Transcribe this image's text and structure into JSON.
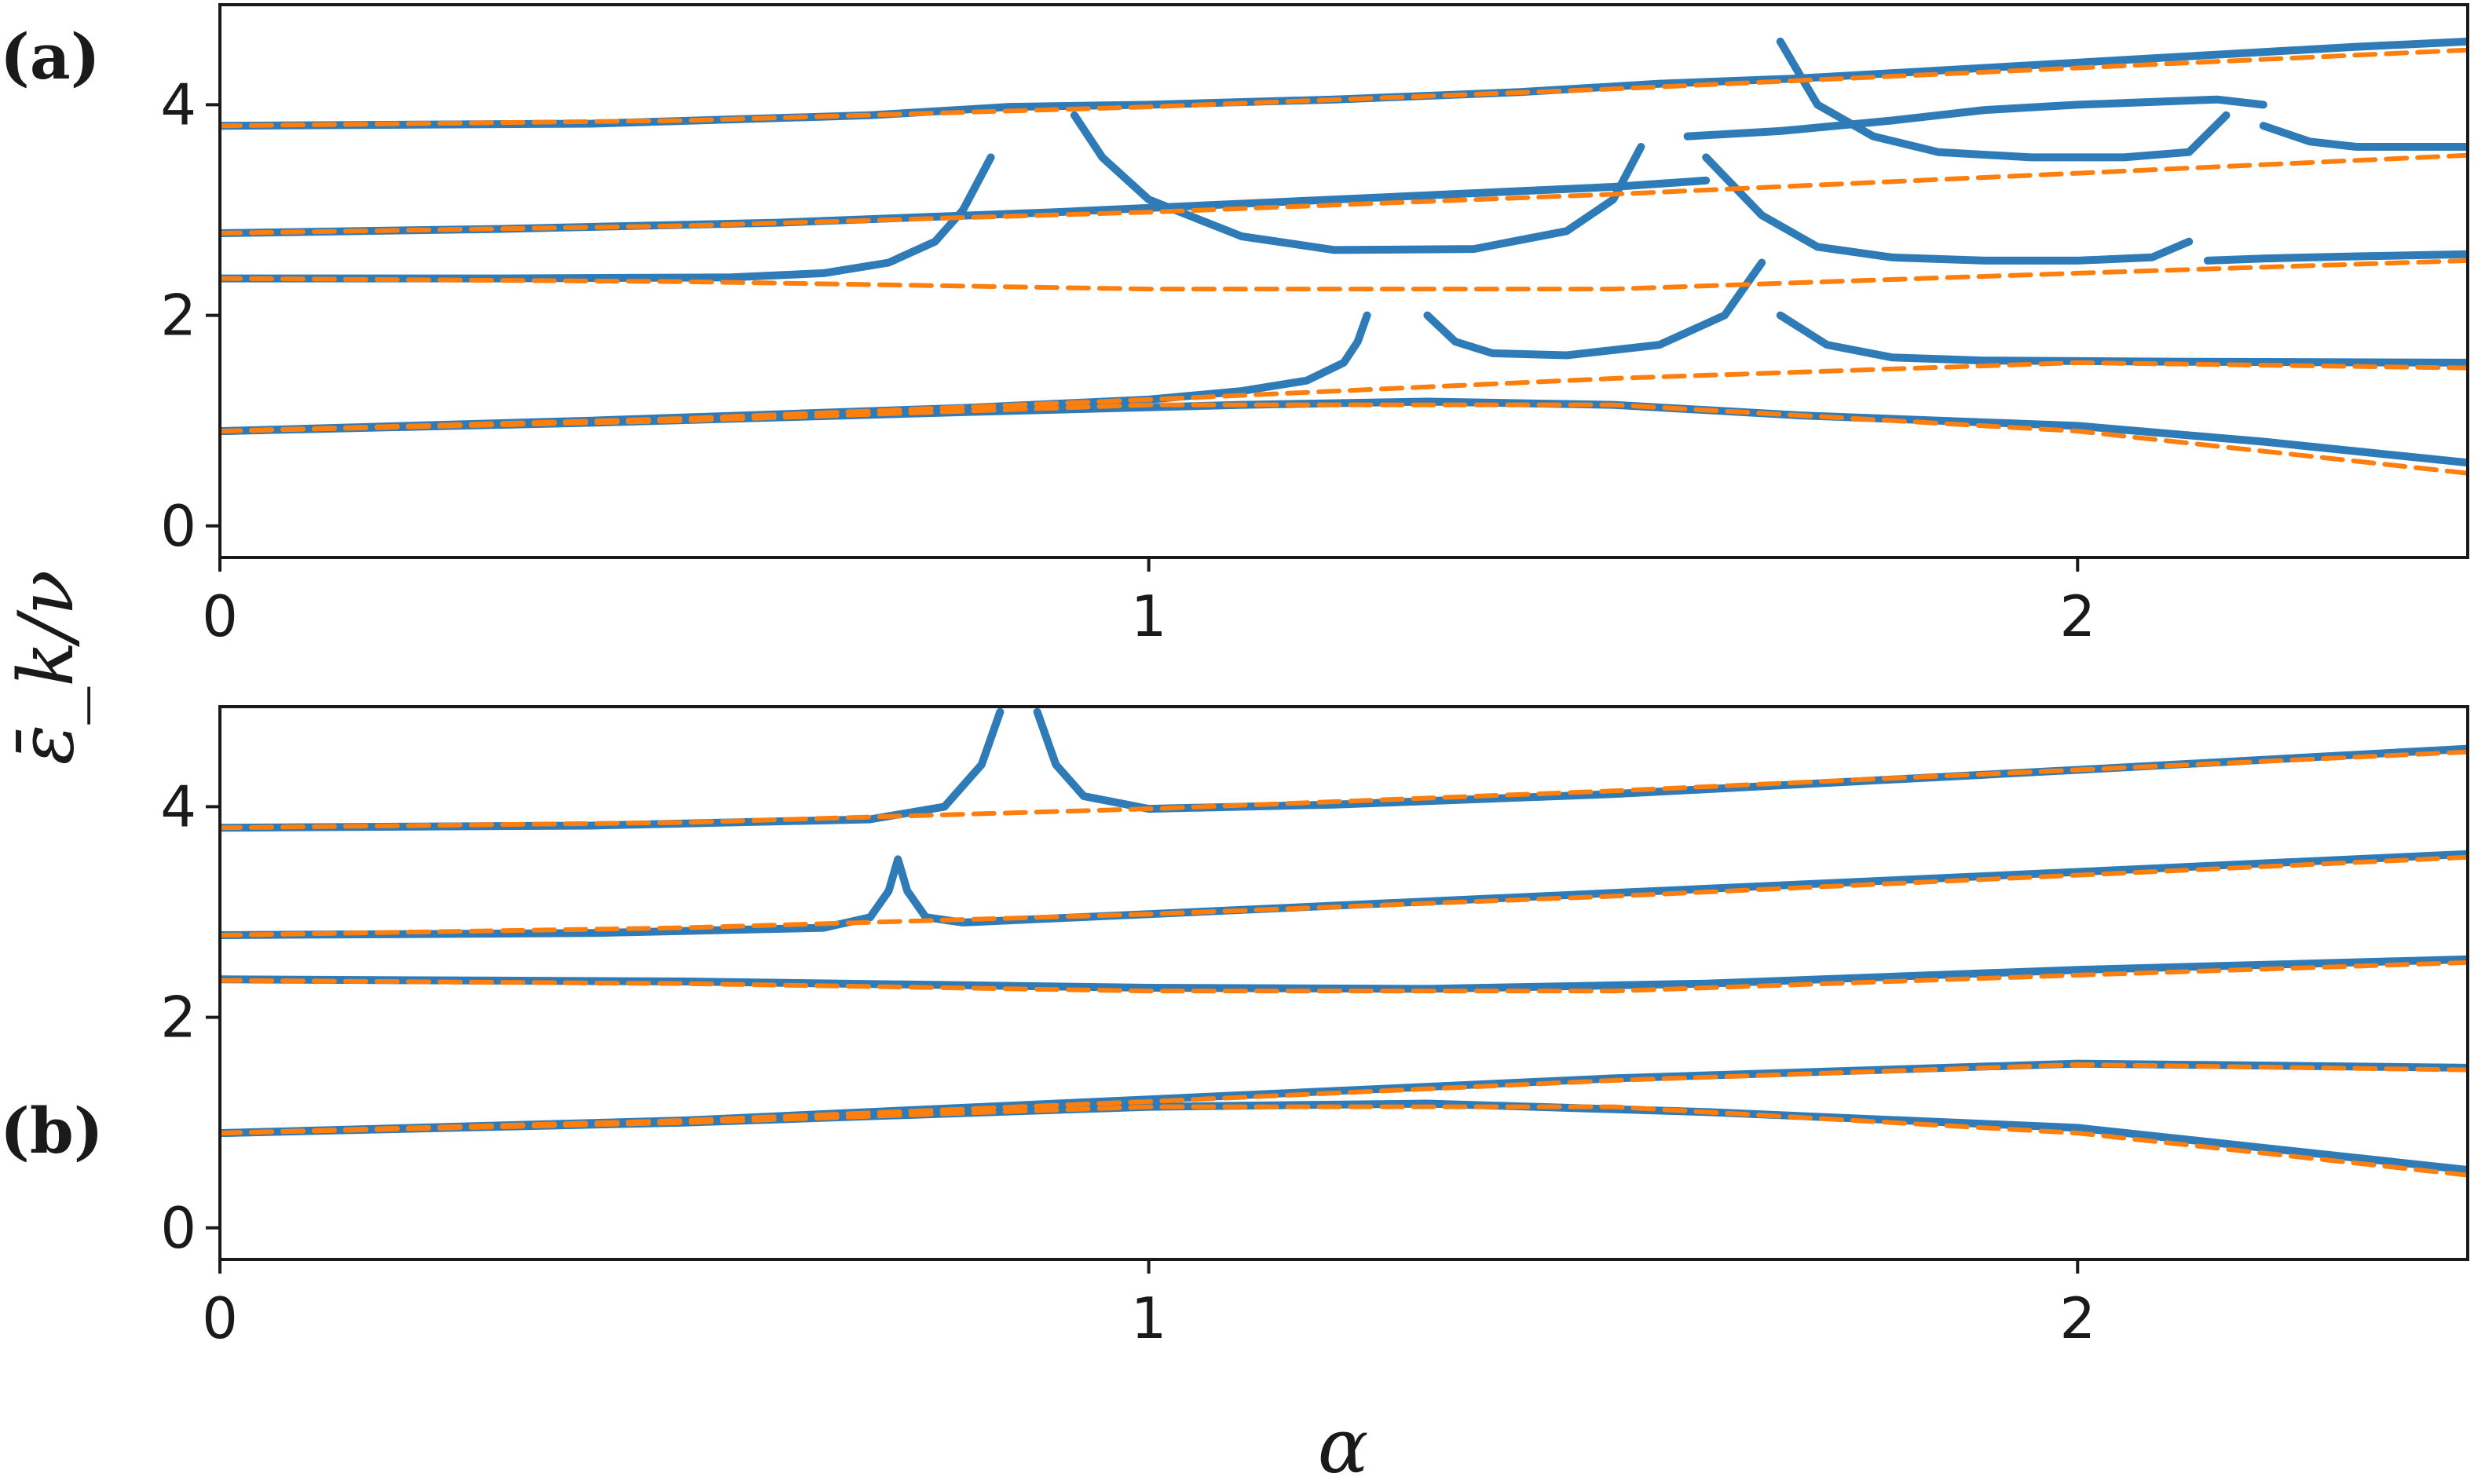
{
  "colors": {
    "exact": "#2f7bb8",
    "approx": "#ff7f0e",
    "axes": "#1a1a1a"
  },
  "ylabel": "ε̄_k/ν",
  "chart_data": [
    {
      "type": "line",
      "panel_label": "(a)",
      "xlabel": "",
      "xlim": [
        0,
        2.42
      ],
      "ylim": [
        -0.3,
        4.95
      ],
      "xticks": [
        0,
        1,
        2
      ],
      "yticks": [
        0,
        2,
        4
      ],
      "grid": false,
      "series": [
        {
          "style": "dashed",
          "x": [
            0,
            0.5,
            1.0,
            1.5,
            2.0,
            2.42
          ],
          "y": [
            0.9,
            1.0,
            1.15,
            1.15,
            0.9,
            0.5
          ]
        },
        {
          "style": "dashed",
          "x": [
            0,
            0.5,
            1.0,
            1.5,
            2.0,
            2.42
          ],
          "y": [
            0.9,
            1.02,
            1.2,
            1.4,
            1.55,
            1.5
          ]
        },
        {
          "style": "dashed",
          "x": [
            0,
            0.5,
            1.0,
            1.5,
            2.0,
            2.42
          ],
          "y": [
            2.35,
            2.32,
            2.25,
            2.25,
            2.4,
            2.52
          ]
        },
        {
          "style": "dashed",
          "x": [
            0,
            0.5,
            1.0,
            1.5,
            2.0,
            2.42
          ],
          "y": [
            2.78,
            2.85,
            2.98,
            3.15,
            3.35,
            3.52
          ]
        },
        {
          "style": "dashed",
          "x": [
            0,
            0.5,
            1.0,
            1.5,
            2.0,
            2.42
          ],
          "y": [
            3.8,
            3.85,
            3.98,
            4.15,
            4.35,
            4.52
          ]
        },
        {
          "style": "solid",
          "x": [
            0,
            0.4,
            0.8,
            1.1,
            1.3,
            1.5,
            1.7,
            2.0,
            2.2,
            2.42
          ],
          "y": [
            0.9,
            0.98,
            1.08,
            1.15,
            1.18,
            1.15,
            1.05,
            0.95,
            0.8,
            0.6
          ]
        },
        {
          "style": "solid",
          "x": [
            0,
            0.4,
            0.8,
            1.0,
            1.1,
            1.17,
            1.21,
            1.225,
            1.235
          ],
          "y": [
            0.9,
            1.0,
            1.12,
            1.2,
            1.28,
            1.38,
            1.55,
            1.75,
            2.0
          ]
        },
        {
          "style": "solid",
          "x": [
            1.3,
            1.33,
            1.37,
            1.45,
            1.55,
            1.62,
            1.66
          ],
          "y": [
            2.0,
            1.75,
            1.64,
            1.62,
            1.72,
            2.0,
            2.5
          ]
        },
        {
          "style": "solid",
          "x": [
            1.68,
            1.73,
            1.8,
            1.9,
            2.1,
            2.42
          ],
          "y": [
            2.0,
            1.72,
            1.6,
            1.57,
            1.56,
            1.55
          ]
        },
        {
          "style": "solid",
          "x": [
            0,
            0.3,
            0.55,
            0.65,
            0.72,
            0.77,
            0.8,
            0.83
          ],
          "y": [
            2.35,
            2.35,
            2.36,
            2.4,
            2.5,
            2.7,
            3.0,
            3.5
          ]
        },
        {
          "style": "solid",
          "x": [
            1.6,
            1.66,
            1.72,
            1.8,
            1.9,
            2.0,
            2.08,
            2.12
          ],
          "y": [
            3.5,
            2.95,
            2.65,
            2.55,
            2.52,
            2.52,
            2.55,
            2.7
          ]
        },
        {
          "style": "solid",
          "x": [
            2.14,
            2.2,
            2.3,
            2.42
          ],
          "y": [
            2.52,
            2.54,
            2.56,
            2.58
          ]
        },
        {
          "style": "solid",
          "x": [
            0,
            0.3,
            0.6,
            0.9,
            1.2,
            1.5,
            1.6
          ],
          "y": [
            2.78,
            2.82,
            2.88,
            2.98,
            3.1,
            3.22,
            3.28
          ]
        },
        {
          "style": "solid",
          "x": [
            0.92,
            0.95,
            1.0,
            1.1,
            1.2,
            1.35,
            1.45,
            1.5,
            1.53
          ],
          "y": [
            3.9,
            3.5,
            3.1,
            2.75,
            2.62,
            2.63,
            2.8,
            3.1,
            3.6
          ]
        },
        {
          "style": "solid",
          "x": [
            1.58,
            1.68,
            1.8,
            1.9,
            2.0,
            2.15,
            2.2
          ],
          "y": [
            3.7,
            3.75,
            3.85,
            3.95,
            4.0,
            4.05,
            4.0
          ]
        },
        {
          "style": "solid",
          "x": [
            1.68,
            1.72,
            1.78,
            1.85,
            1.95,
            2.05,
            2.12,
            2.16
          ],
          "y": [
            4.6,
            4.0,
            3.7,
            3.55,
            3.5,
            3.5,
            3.55,
            3.9
          ]
        },
        {
          "style": "solid",
          "x": [
            2.2,
            2.25,
            2.3,
            2.42
          ],
          "y": [
            3.8,
            3.65,
            3.6,
            3.6
          ]
        },
        {
          "style": "solid",
          "x": [
            0,
            0.4,
            0.7,
            0.85,
            1.0,
            1.2,
            1.4,
            1.55
          ],
          "y": [
            3.8,
            3.82,
            3.9,
            3.98,
            4.0,
            4.05,
            4.12,
            4.2
          ]
        },
        {
          "style": "solid",
          "x": [
            1.55,
            1.7,
            1.9,
            2.1,
            2.3,
            2.42
          ],
          "y": [
            4.2,
            4.25,
            4.35,
            4.45,
            4.55,
            4.6
          ]
        }
      ]
    },
    {
      "type": "line",
      "panel_label": "(b)",
      "xlabel": "α",
      "xlim": [
        0,
        2.42
      ],
      "ylim": [
        -0.3,
        4.95
      ],
      "xticks": [
        0,
        1,
        2
      ],
      "yticks": [
        0,
        2,
        4
      ],
      "grid": false,
      "series": [
        {
          "style": "dashed",
          "x": [
            0,
            0.5,
            1.0,
            1.5,
            2.0,
            2.42
          ],
          "y": [
            0.9,
            1.0,
            1.15,
            1.15,
            0.9,
            0.5
          ]
        },
        {
          "style": "dashed",
          "x": [
            0,
            0.5,
            1.0,
            1.5,
            2.0,
            2.42
          ],
          "y": [
            0.9,
            1.02,
            1.2,
            1.4,
            1.55,
            1.5
          ]
        },
        {
          "style": "dashed",
          "x": [
            0,
            0.5,
            1.0,
            1.5,
            2.0,
            2.42
          ],
          "y": [
            2.35,
            2.32,
            2.25,
            2.25,
            2.4,
            2.52
          ]
        },
        {
          "style": "dashed",
          "x": [
            0,
            0.5,
            1.0,
            1.5,
            2.0,
            2.42
          ],
          "y": [
            2.78,
            2.85,
            2.98,
            3.15,
            3.35,
            3.52
          ]
        },
        {
          "style": "dashed",
          "x": [
            0,
            0.5,
            1.0,
            1.5,
            2.0,
            2.42
          ],
          "y": [
            3.8,
            3.85,
            3.98,
            4.15,
            4.35,
            4.52
          ]
        },
        {
          "style": "solid",
          "x": [
            0,
            0.5,
            1.0,
            1.3,
            1.6,
            2.0,
            2.42
          ],
          "y": [
            0.9,
            1.0,
            1.15,
            1.18,
            1.1,
            0.95,
            0.55
          ]
        },
        {
          "style": "solid",
          "x": [
            0,
            0.5,
            1.0,
            1.5,
            2.0,
            2.42
          ],
          "y": [
            0.9,
            1.02,
            1.22,
            1.42,
            1.56,
            1.52
          ]
        },
        {
          "style": "solid",
          "x": [
            0,
            0.5,
            1.0,
            1.3,
            1.6,
            2.0,
            2.42
          ],
          "y": [
            2.36,
            2.34,
            2.28,
            2.27,
            2.32,
            2.45,
            2.55
          ]
        },
        {
          "style": "solid",
          "x": [
            0,
            0.4,
            0.65,
            0.7,
            0.72,
            0.73,
            0.74,
            0.76,
            0.8,
            1.0,
            1.5,
            2.0,
            2.42
          ],
          "y": [
            2.78,
            2.8,
            2.85,
            2.95,
            3.2,
            3.5,
            3.2,
            2.95,
            2.9,
            2.98,
            3.18,
            3.38,
            3.55
          ]
        },
        {
          "style": "solid",
          "x": [
            0,
            0.4,
            0.7,
            0.78,
            0.82,
            0.84
          ],
          "y": [
            3.8,
            3.82,
            3.88,
            4.0,
            4.4,
            4.9
          ]
        },
        {
          "style": "solid",
          "x": [
            0.88,
            0.9,
            0.93,
            1.0,
            1.2,
            1.5,
            2.0,
            2.42
          ],
          "y": [
            4.9,
            4.4,
            4.1,
            3.98,
            4.02,
            4.12,
            4.35,
            4.55
          ]
        }
      ]
    }
  ]
}
